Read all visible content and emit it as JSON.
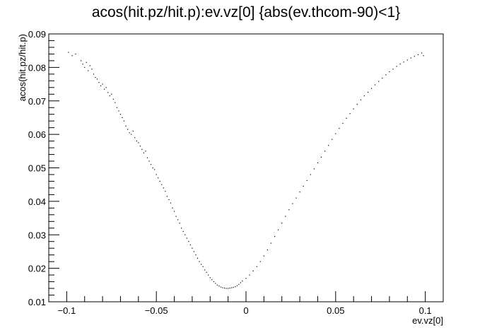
{
  "chart_data": {
    "type": "scatter",
    "title": "acos(hit.pz/hit.p):ev.vz[0] {abs(ev.thcom-90)<1}",
    "xlabel": "ev.vz[0]",
    "ylabel": "acos(hit.pz/hit.p)",
    "xlim": [
      -0.11,
      0.11
    ],
    "ylim": [
      0.01,
      0.09
    ],
    "grid": false,
    "legend": "none",
    "x_ticks": [
      {
        "value": -0.1,
        "label": "−0.1"
      },
      {
        "value": -0.05,
        "label": "−0.05"
      },
      {
        "value": 0,
        "label": "0"
      },
      {
        "value": 0.05,
        "label": "0.05"
      },
      {
        "value": 0.1,
        "label": "0.1"
      }
    ],
    "y_ticks": [
      {
        "value": 0.01,
        "label": "0.01"
      },
      {
        "value": 0.02,
        "label": "0.02"
      },
      {
        "value": 0.03,
        "label": "0.03"
      },
      {
        "value": 0.04,
        "label": "0.04"
      },
      {
        "value": 0.05,
        "label": "0.05"
      },
      {
        "value": 0.06,
        "label": "0.06"
      },
      {
        "value": 0.07,
        "label": "0.07"
      },
      {
        "value": 0.08,
        "label": "0.08"
      },
      {
        "value": 0.09,
        "label": "0.09"
      }
    ],
    "points": [
      [
        -0.099,
        0.0845
      ],
      [
        -0.097,
        0.0835
      ],
      [
        -0.095,
        0.084
      ],
      [
        -0.092,
        0.082
      ],
      [
        -0.091,
        0.081
      ],
      [
        -0.09,
        0.08
      ],
      [
        -0.089,
        0.0815
      ],
      [
        -0.088,
        0.079
      ],
      [
        -0.087,
        0.0805
      ],
      [
        -0.086,
        0.0795
      ],
      [
        -0.085,
        0.078
      ],
      [
        -0.084,
        0.077
      ],
      [
        -0.083,
        0.0765
      ],
      [
        -0.082,
        0.0755
      ],
      [
        -0.081,
        0.0745
      ],
      [
        -0.08,
        0.075
      ],
      [
        -0.079,
        0.0735
      ],
      [
        -0.078,
        0.074
      ],
      [
        -0.077,
        0.0725
      ],
      [
        -0.076,
        0.0715
      ],
      [
        -0.075,
        0.072
      ],
      [
        -0.074,
        0.0705
      ],
      [
        -0.073,
        0.0695
      ],
      [
        -0.072,
        0.068
      ],
      [
        -0.071,
        0.067
      ],
      [
        -0.07,
        0.066
      ],
      [
        -0.069,
        0.065
      ],
      [
        -0.068,
        0.064
      ],
      [
        -0.067,
        0.0625
      ],
      [
        -0.066,
        0.0615
      ],
      [
        -0.065,
        0.0605
      ],
      [
        -0.064,
        0.06
      ],
      [
        -0.063,
        0.061
      ],
      [
        -0.062,
        0.059
      ],
      [
        -0.061,
        0.058
      ],
      [
        -0.06,
        0.0575
      ],
      [
        -0.059,
        0.0565
      ],
      [
        -0.058,
        0.0555
      ],
      [
        -0.057,
        0.0545
      ],
      [
        -0.056,
        0.055
      ],
      [
        -0.055,
        0.053
      ],
      [
        -0.054,
        0.052
      ],
      [
        -0.053,
        0.051
      ],
      [
        -0.052,
        0.05
      ],
      [
        -0.051,
        0.0495
      ],
      [
        -0.05,
        0.048
      ],
      [
        -0.049,
        0.047
      ],
      [
        -0.048,
        0.046
      ],
      [
        -0.047,
        0.045
      ],
      [
        -0.046,
        0.044
      ],
      [
        -0.045,
        0.043
      ],
      [
        -0.044,
        0.0415
      ],
      [
        -0.043,
        0.0405
      ],
      [
        -0.042,
        0.0395
      ],
      [
        -0.041,
        0.038
      ],
      [
        -0.04,
        0.037
      ],
      [
        -0.039,
        0.0355
      ],
      [
        -0.038,
        0.0345
      ],
      [
        -0.037,
        0.0335
      ],
      [
        -0.036,
        0.032
      ],
      [
        -0.035,
        0.031
      ],
      [
        -0.034,
        0.03
      ],
      [
        -0.033,
        0.029
      ],
      [
        -0.032,
        0.028
      ],
      [
        -0.031,
        0.027
      ],
      [
        -0.03,
        0.026
      ],
      [
        -0.029,
        0.025
      ],
      [
        -0.028,
        0.024
      ],
      [
        -0.027,
        0.023
      ],
      [
        -0.026,
        0.022
      ],
      [
        -0.025,
        0.0212
      ],
      [
        -0.024,
        0.0205
      ],
      [
        -0.023,
        0.0195
      ],
      [
        -0.022,
        0.0188
      ],
      [
        -0.021,
        0.018
      ],
      [
        -0.02,
        0.0172
      ],
      [
        -0.019,
        0.0166
      ],
      [
        -0.018,
        0.016
      ],
      [
        -0.017,
        0.0155
      ],
      [
        -0.016,
        0.015
      ],
      [
        -0.015,
        0.0147
      ],
      [
        -0.014,
        0.0144
      ],
      [
        -0.013,
        0.0142
      ],
      [
        -0.012,
        0.0141
      ],
      [
        -0.011,
        0.014
      ],
      [
        -0.01,
        0.014
      ],
      [
        -0.009,
        0.0141
      ],
      [
        -0.008,
        0.0142
      ],
      [
        -0.007,
        0.0143
      ],
      [
        -0.006,
        0.0145
      ],
      [
        -0.005,
        0.0148
      ],
      [
        -0.004,
        0.0152
      ],
      [
        -0.003,
        0.0157
      ],
      [
        -0.002,
        0.0162
      ],
      [
        0.0,
        0.017
      ],
      [
        0.002,
        0.018
      ],
      [
        0.004,
        0.0192
      ],
      [
        0.006,
        0.0205
      ],
      [
        0.008,
        0.022
      ],
      [
        0.01,
        0.0237
      ],
      [
        0.012,
        0.0255
      ],
      [
        0.014,
        0.0275
      ],
      [
        0.016,
        0.0295
      ],
      [
        0.018,
        0.0315
      ],
      [
        0.02,
        0.0335
      ],
      [
        0.022,
        0.0355
      ],
      [
        0.024,
        0.0375
      ],
      [
        0.026,
        0.0393
      ],
      [
        0.028,
        0.041
      ],
      [
        0.03,
        0.0428
      ],
      [
        0.032,
        0.0445
      ],
      [
        0.034,
        0.0462
      ],
      [
        0.036,
        0.048
      ],
      [
        0.038,
        0.0497
      ],
      [
        0.04,
        0.0515
      ],
      [
        0.042,
        0.0532
      ],
      [
        0.044,
        0.055
      ],
      [
        0.046,
        0.0567
      ],
      [
        0.048,
        0.0585
      ],
      [
        0.05,
        0.0602
      ],
      [
        0.052,
        0.0618
      ],
      [
        0.054,
        0.0633
      ],
      [
        0.056,
        0.0648
      ],
      [
        0.058,
        0.0662
      ],
      [
        0.06,
        0.0676
      ],
      [
        0.062,
        0.069
      ],
      [
        0.064,
        0.0703
      ],
      [
        0.066,
        0.0715
      ],
      [
        0.068,
        0.0726
      ],
      [
        0.07,
        0.0737
      ],
      [
        0.072,
        0.0748
      ],
      [
        0.074,
        0.0758
      ],
      [
        0.076,
        0.0768
      ],
      [
        0.078,
        0.0778
      ],
      [
        0.08,
        0.0787
      ],
      [
        0.082,
        0.0795
      ],
      [
        0.084,
        0.0803
      ],
      [
        0.086,
        0.081
      ],
      [
        0.088,
        0.0816
      ],
      [
        0.09,
        0.0822
      ],
      [
        0.092,
        0.0828
      ],
      [
        0.094,
        0.0833
      ],
      [
        0.096,
        0.0838
      ],
      [
        0.098,
        0.0843
      ],
      [
        0.099,
        0.0835
      ]
    ]
  }
}
